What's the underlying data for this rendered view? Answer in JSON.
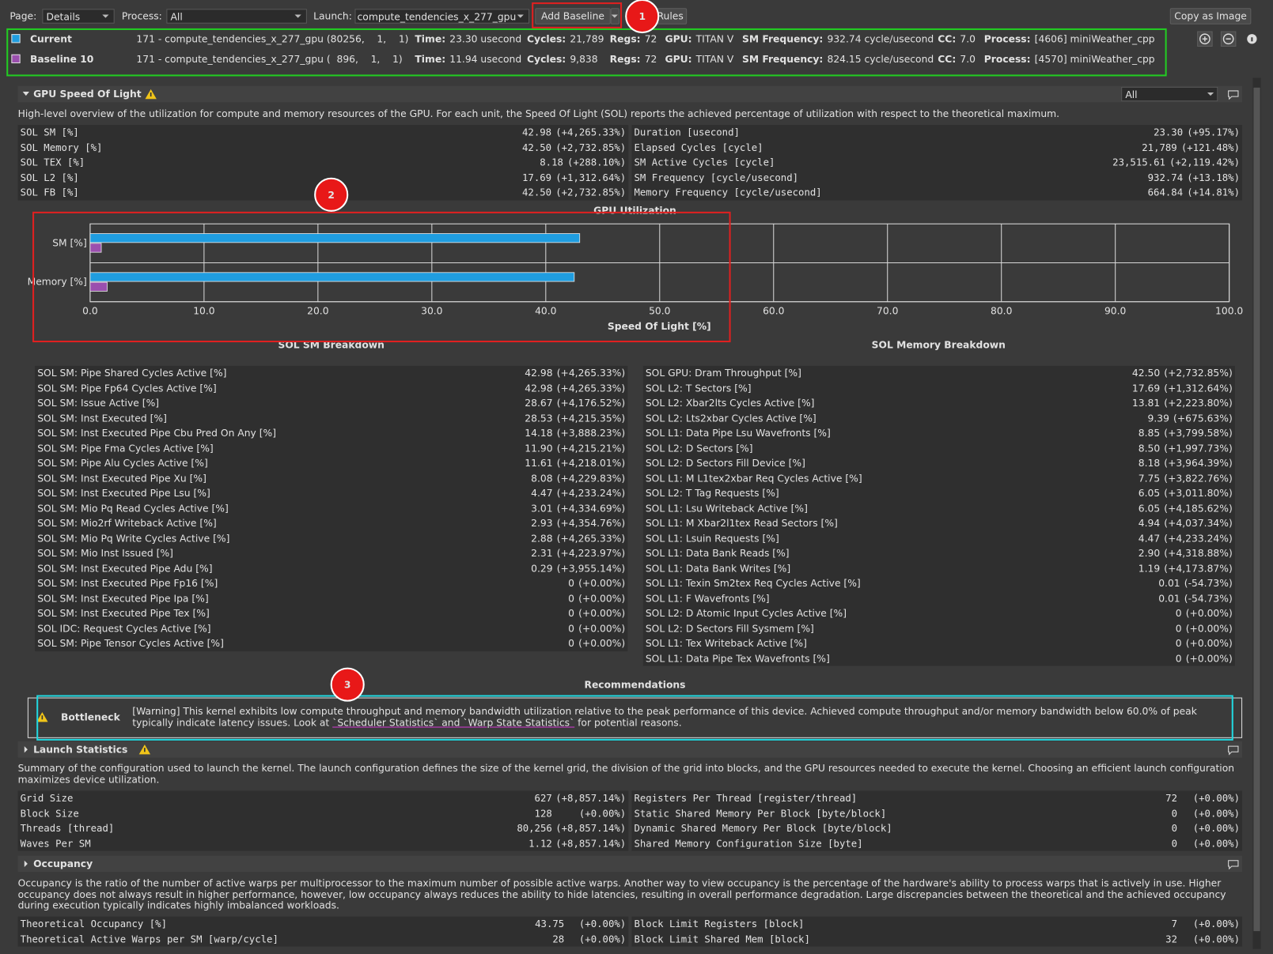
{
  "toolbar": {
    "page_label": "Page:",
    "page_value": "Details",
    "process_label": "Process:",
    "process_value": "All",
    "launch_label": "Launch:",
    "launch_value": "compute_tendencies_x_277_gpu",
    "add_baseline": "Add Baseline",
    "rules": "Rules",
    "copy_image": "Copy as Image"
  },
  "annotations": [
    "1",
    "2",
    "3"
  ],
  "results": [
    {
      "name": "Current",
      "color": "#1f9de0",
      "launch": "171 - compute_tendencies_x_277_gpu (80256,    1,    1)",
      "fields": [
        {
          "label": "Time:",
          "value": "23.30 usecond"
        },
        {
          "label": "Cycles:",
          "value": "21,789"
        },
        {
          "label": "Regs:",
          "value": "72"
        },
        {
          "label": "GPU:",
          "value": "TITAN V"
        },
        {
          "label": "SM Frequency:",
          "value": "932.74 cycle/usecond"
        },
        {
          "label": "CC:",
          "value": "7.0"
        },
        {
          "label": "Process:",
          "value": "[4606] miniWeather_cpp"
        }
      ]
    },
    {
      "name": "Baseline 10",
      "color": "#9b4fae",
      "launch": "171 - compute_tendencies_x_277_gpu (  896,    1,    1)",
      "fields": [
        {
          "label": "Time:",
          "value": "11.94 usecond"
        },
        {
          "label": "Cycles:",
          "value": "9,838"
        },
        {
          "label": "Regs:",
          "value": "72"
        },
        {
          "label": "GPU:",
          "value": "TITAN V"
        },
        {
          "label": "SM Frequency:",
          "value": "824.15 cycle/usecond"
        },
        {
          "label": "CC:",
          "value": "7.0"
        },
        {
          "label": "Process:",
          "value": "[4570] miniWeather_cpp"
        }
      ]
    }
  ],
  "sol": {
    "title": "GPU Speed Of Light",
    "filter": "All",
    "description": "High-level overview of the utilization for compute and memory resources of the GPU. For each unit, the Speed Of Light (SOL) reports the achieved percentage of utilization with respect to the theoretical maximum.",
    "left": [
      {
        "label": "SOL SM [%]",
        "value": "42.98",
        "delta": "(+4,265.33%)"
      },
      {
        "label": "SOL Memory [%]",
        "value": "42.50",
        "delta": "(+2,732.85%)"
      },
      {
        "label": "SOL TEX [%]",
        "value": "8.18",
        "delta": "(+288.10%)"
      },
      {
        "label": "SOL L2 [%]",
        "value": "17.69",
        "delta": "(+1,312.64%)"
      },
      {
        "label": "SOL FB [%]",
        "value": "42.50",
        "delta": "(+2,732.85%)"
      }
    ],
    "right": [
      {
        "label": "Duration [usecond]",
        "value": "23.30",
        "delta": "(+95.17%)"
      },
      {
        "label": "Elapsed Cycles [cycle]",
        "value": "21,789",
        "delta": "(+121.48%)"
      },
      {
        "label": "SM Active Cycles [cycle]",
        "value": "23,515.61",
        "delta": "(+2,119.42%)"
      },
      {
        "label": "SM Frequency [cycle/usecond]",
        "value": "932.74",
        "delta": "(+13.18%)"
      },
      {
        "label": "Memory Frequency [cycle/usecond]",
        "value": "664.84",
        "delta": "(+14.81%)"
      }
    ]
  },
  "chart_data": {
    "type": "bar",
    "orientation": "horizontal",
    "title": "GPU Utilization",
    "xlabel": "Speed Of Light [%]",
    "categories": [
      "SM [%]",
      "Memory [%]"
    ],
    "series": [
      {
        "color": "#1f9de0",
        "values": [
          42.98,
          42.5
        ]
      },
      {
        "color": "#9b4fae",
        "values": [
          0.98,
          1.5
        ]
      }
    ],
    "xlim": [
      0,
      100
    ],
    "xticks": [
      {
        "value": 0,
        "label": "0.0"
      },
      {
        "value": 10,
        "label": "10.0"
      },
      {
        "value": 20,
        "label": "20.0"
      },
      {
        "value": 30,
        "label": "30.0"
      },
      {
        "value": 40,
        "label": "40.0"
      },
      {
        "value": 50,
        "label": "50.0"
      },
      {
        "value": 60,
        "label": "60.0"
      },
      {
        "value": 70,
        "label": "70.0"
      },
      {
        "value": 80,
        "label": "80.0"
      },
      {
        "value": 90,
        "label": "90.0"
      },
      {
        "value": 100,
        "label": "100.0"
      }
    ],
    "grid": true
  },
  "sm_breakdown": {
    "title": "SOL SM Breakdown",
    "rows": [
      {
        "label": "SOL SM: Pipe Shared Cycles Active [%]",
        "value": "42.98",
        "delta": "(+4,265.33%)"
      },
      {
        "label": "SOL SM: Pipe Fp64 Cycles Active [%]",
        "value": "42.98",
        "delta": "(+4,265.33%)"
      },
      {
        "label": "SOL SM: Issue Active [%]",
        "value": "28.67",
        "delta": "(+4,176.52%)"
      },
      {
        "label": "SOL SM: Inst Executed [%]",
        "value": "28.53",
        "delta": "(+4,215.35%)"
      },
      {
        "label": "SOL SM: Inst Executed Pipe Cbu Pred On Any [%]",
        "value": "14.18",
        "delta": "(+3,888.23%)"
      },
      {
        "label": "SOL SM: Pipe Fma Cycles Active [%]",
        "value": "11.90",
        "delta": "(+4,215.21%)"
      },
      {
        "label": "SOL SM: Pipe Alu Cycles Active [%]",
        "value": "11.61",
        "delta": "(+4,218.01%)"
      },
      {
        "label": "SOL SM: Inst Executed Pipe Xu [%]",
        "value": "8.08",
        "delta": "(+4,229.83%)"
      },
      {
        "label": "SOL SM: Inst Executed Pipe Lsu [%]",
        "value": "4.47",
        "delta": "(+4,233.24%)"
      },
      {
        "label": "SOL SM: Mio Pq Read Cycles Active [%]",
        "value": "3.01",
        "delta": "(+4,334.69%)"
      },
      {
        "label": "SOL SM: Mio2rf Writeback Active [%]",
        "value": "2.93",
        "delta": "(+4,354.76%)"
      },
      {
        "label": "SOL SM: Mio Pq Write Cycles Active [%]",
        "value": "2.88",
        "delta": "(+4,265.33%)"
      },
      {
        "label": "SOL SM: Mio Inst Issued [%]",
        "value": "2.31",
        "delta": "(+4,223.97%)"
      },
      {
        "label": "SOL SM: Inst Executed Pipe Adu [%]",
        "value": "0.29",
        "delta": "(+3,955.14%)"
      },
      {
        "label": "SOL SM: Inst Executed Pipe Fp16 [%]",
        "value": "0",
        "delta": "(+0.00%)"
      },
      {
        "label": "SOL SM: Inst Executed Pipe Ipa [%]",
        "value": "0",
        "delta": "(+0.00%)"
      },
      {
        "label": "SOL SM: Inst Executed Pipe Tex [%]",
        "value": "0",
        "delta": "(+0.00%)"
      },
      {
        "label": "SOL IDC: Request Cycles Active [%]",
        "value": "0",
        "delta": "(+0.00%)"
      },
      {
        "label": "SOL SM: Pipe Tensor Cycles Active [%]",
        "value": "0",
        "delta": "(+0.00%)"
      }
    ]
  },
  "memory_breakdown": {
    "title": "SOL Memory Breakdown",
    "rows": [
      {
        "label": "SOL GPU: Dram Throughput [%]",
        "value": "42.50",
        "delta": "(+2,732.85%)"
      },
      {
        "label": "SOL L2: T Sectors [%]",
        "value": "17.69",
        "delta": "(+1,312.64%)"
      },
      {
        "label": "SOL L2: Xbar2lts Cycles Active [%]",
        "value": "13.81",
        "delta": "(+2,223.80%)"
      },
      {
        "label": "SOL L2: Lts2xbar Cycles Active [%]",
        "value": "9.39",
        "delta": "(+675.63%)"
      },
      {
        "label": "SOL L1: Data Pipe Lsu Wavefronts [%]",
        "value": "8.85",
        "delta": "(+3,799.58%)"
      },
      {
        "label": "SOL L2: D Sectors [%]",
        "value": "8.50",
        "delta": "(+1,997.73%)"
      },
      {
        "label": "SOL L2: D Sectors Fill Device [%]",
        "value": "8.18",
        "delta": "(+3,964.39%)"
      },
      {
        "label": "SOL L1: M L1tex2xbar Req Cycles Active [%]",
        "value": "7.75",
        "delta": "(+3,822.76%)"
      },
      {
        "label": "SOL L2: T Tag Requests [%]",
        "value": "6.05",
        "delta": "(+3,011.80%)"
      },
      {
        "label": "SOL L1: Lsu Writeback Active [%]",
        "value": "6.05",
        "delta": "(+4,185.62%)"
      },
      {
        "label": "SOL L1: M Xbar2l1tex Read Sectors [%]",
        "value": "4.94",
        "delta": "(+4,037.34%)"
      },
      {
        "label": "SOL L1: Lsuin Requests [%]",
        "value": "4.47",
        "delta": "(+4,233.24%)"
      },
      {
        "label": "SOL L1: Data Bank Reads [%]",
        "value": "2.90",
        "delta": "(+4,318.88%)"
      },
      {
        "label": "SOL L1: Data Bank Writes [%]",
        "value": "1.19",
        "delta": "(+4,173.87%)"
      },
      {
        "label": "SOL L1: Texin Sm2tex Req Cycles Active [%]",
        "value": "0.01",
        "delta": "(-54.73%)"
      },
      {
        "label": "SOL L1: F Wavefronts [%]",
        "value": "0.01",
        "delta": "(-54.73%)"
      },
      {
        "label": "SOL L2: D Atomic Input Cycles Active [%]",
        "value": "0",
        "delta": "(+0.00%)"
      },
      {
        "label": "SOL L2: D Sectors Fill Sysmem [%]",
        "value": "0",
        "delta": "(+0.00%)"
      },
      {
        "label": "SOL L1: Tex Writeback Active [%]",
        "value": "0",
        "delta": "(+0.00%)"
      },
      {
        "label": "SOL L1: Data Pipe Tex Wavefronts [%]",
        "value": "0",
        "delta": "(+0.00%)"
      }
    ]
  },
  "recommendations": {
    "title": "Recommendations",
    "items": [
      {
        "name": "Bottleneck",
        "text": "[Warning] This kernel exhibits low compute throughput and memory bandwidth utilization relative to the peak performance of this device. Achieved compute throughput and/or memory bandwidth below 60.0% of peak typically indicate latency issues. Look at ",
        "link": "`Scheduler Statistics` and `Warp State Statistics`",
        "tail": " for potential reasons."
      }
    ]
  },
  "launch_statistics": {
    "title": "Launch Statistics",
    "description": "Summary of the configuration used to launch the kernel. The launch configuration defines the size of the kernel grid, the division of the grid into blocks, and the GPU resources needed to execute the kernel. Choosing an efficient launch configuration maximizes device utilization.",
    "left": [
      {
        "label": "Grid Size",
        "value": "627",
        "delta": "(+8,857.14%)"
      },
      {
        "label": "Block Size",
        "value": "128",
        "delta": "(+0.00%)"
      },
      {
        "label": "Threads [thread]",
        "value": "80,256",
        "delta": "(+8,857.14%)"
      },
      {
        "label": "Waves Per SM",
        "value": "1.12",
        "delta": "(+8,857.14%)"
      }
    ],
    "right": [
      {
        "label": "Registers Per Thread [register/thread]",
        "value": "72",
        "delta": "(+0.00%)"
      },
      {
        "label": "Static Shared Memory Per Block [byte/block]",
        "value": "0",
        "delta": "(+0.00%)"
      },
      {
        "label": "Dynamic Shared Memory Per Block [byte/block]",
        "value": "0",
        "delta": "(+0.00%)"
      },
      {
        "label": "Shared Memory Configuration Size [byte]",
        "value": "0",
        "delta": "(+0.00%)"
      }
    ]
  },
  "occupancy": {
    "title": "Occupancy",
    "description": "Occupancy is the ratio of the number of active warps per multiprocessor to the maximum number of possible active warps. Another way to view occupancy is the percentage of the hardware's ability to process warps that is actively in use. Higher occupancy does not always result in higher performance, however, low occupancy always reduces the ability to hide latencies, resulting in overall performance degradation. Large discrepancies between the theoretical and the achieved occupancy during execution typically indicates highly imbalanced workloads.",
    "left": [
      {
        "label": "Theoretical Occupancy [%]",
        "value": "43.75",
        "delta": "(+0.00%)"
      },
      {
        "label": "Theoretical Active Warps per SM [warp/cycle]",
        "value": "28",
        "delta": "(+0.00%)"
      }
    ],
    "right": [
      {
        "label": "Block Limit Registers [block]",
        "value": "7",
        "delta": "(+0.00%)"
      },
      {
        "label": "Block Limit Shared Mem [block]",
        "value": "32",
        "delta": "(+0.00%)"
      }
    ]
  }
}
